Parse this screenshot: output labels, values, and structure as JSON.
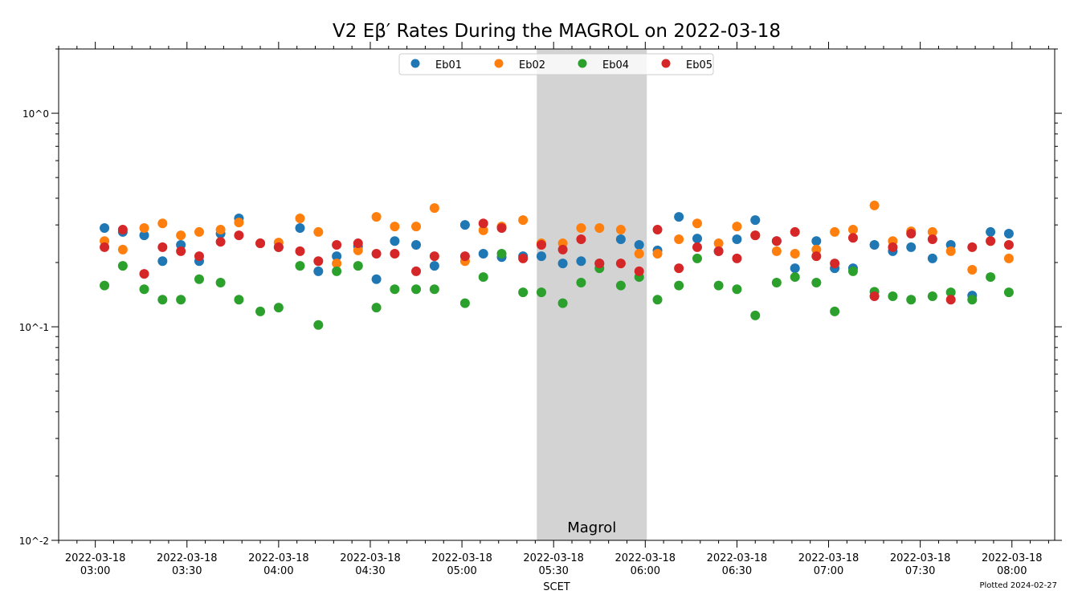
{
  "chart_data": {
    "type": "scatter",
    "title": "V2 Eβ′ Rates During the MAGROL on 2022-03-18",
    "xlabel": "SCET",
    "ylabel": "",
    "yscale": "log",
    "ylim": [
      0.01,
      2.0
    ],
    "xlim": [
      "02:48",
      "08:14"
    ],
    "date": "2022-03-18",
    "x_ticks": [
      "03:00",
      "03:30",
      "04:00",
      "04:30",
      "05:00",
      "05:30",
      "06:00",
      "06:30",
      "07:00",
      "07:30",
      "08:00"
    ],
    "y_ticks": [
      {
        "value": 1,
        "label": "10^0"
      },
      {
        "value": 0.1,
        "label": "10^-1"
      },
      {
        "value": 0.01,
        "label": "10^-2"
      }
    ],
    "grid": false,
    "legend_position": "top-center",
    "shaded_region": {
      "start": "05:24:30",
      "end": "06:00:30",
      "label": "Magrol",
      "color": "#d3d3d3"
    },
    "footnote": "Plotted 2024-02-27",
    "x": [
      "03:03",
      "03:09",
      "03:16",
      "03:22",
      "03:28",
      "03:34",
      "03:41",
      "03:47",
      "03:54",
      "04:00",
      "04:07",
      "04:13",
      "04:19",
      "04:26",
      "04:32",
      "04:38",
      "04:45",
      "04:51",
      "05:01",
      "05:07",
      "05:13",
      "05:20",
      "05:26",
      "05:33",
      "05:39",
      "05:45",
      "05:52",
      "05:58",
      "06:04",
      "06:11",
      "06:17",
      "06:24",
      "06:30",
      "06:36",
      "06:43",
      "06:49",
      "06:56",
      "07:02",
      "07:08",
      "07:15",
      "07:21",
      "07:27",
      "07:34",
      "07:40",
      "07:47",
      "07:53",
      "07:59"
    ],
    "series": [
      {
        "name": "Eb01",
        "color": "#1f77b4",
        "values": [
          0.29,
          0.278,
          0.268,
          0.203,
          0.242,
          0.203,
          0.273,
          0.322,
          0.246,
          0.236,
          0.29,
          0.182,
          0.214,
          0.238,
          0.167,
          0.252,
          0.242,
          0.193,
          0.3,
          0.22,
          0.212,
          0.214,
          0.214,
          0.198,
          0.203,
          0.198,
          0.257,
          0.242,
          0.228,
          0.327,
          0.259,
          0.226,
          0.257,
          0.316,
          0.252,
          0.188,
          0.252,
          0.188,
          0.188,
          0.242,
          0.226,
          0.236,
          0.209,
          0.242,
          0.14,
          0.278,
          0.273
        ]
      },
      {
        "name": "Eb02",
        "color": "#ff7f0e",
        "values": [
          0.252,
          0.23,
          0.29,
          0.305,
          0.268,
          0.278,
          0.285,
          0.308,
          0.246,
          0.248,
          0.322,
          0.278,
          0.198,
          0.228,
          0.327,
          0.295,
          0.295,
          0.36,
          0.203,
          0.283,
          0.295,
          0.316,
          0.246,
          0.246,
          0.29,
          0.29,
          0.285,
          0.22,
          0.22,
          0.257,
          0.305,
          0.246,
          0.295,
          0.268,
          0.226,
          0.22,
          0.23,
          0.278,
          0.285,
          0.37,
          0.252,
          0.28,
          0.278,
          0.226,
          0.185,
          0.252,
          0.209
        ]
      },
      {
        "name": "Eb04",
        "color": "#2ca02c",
        "values": [
          0.156,
          0.193,
          0.15,
          0.134,
          0.134,
          0.167,
          0.161,
          0.134,
          0.118,
          0.123,
          0.193,
          0.102,
          0.182,
          0.193,
          0.123,
          0.15,
          0.15,
          0.15,
          0.129,
          0.171,
          0.22,
          0.145,
          0.145,
          0.129,
          0.161,
          0.188,
          0.156,
          0.171,
          0.134,
          0.156,
          0.209,
          0.156,
          0.15,
          0.113,
          0.161,
          0.171,
          0.161,
          0.118,
          0.182,
          0.146,
          0.139,
          0.134,
          0.139,
          0.145,
          0.134,
          0.171,
          0.145
        ]
      },
      {
        "name": "Eb05",
        "color": "#d62728",
        "values": [
          0.236,
          0.285,
          0.177,
          0.236,
          0.226,
          0.214,
          0.25,
          0.268,
          0.246,
          0.236,
          0.226,
          0.203,
          0.242,
          0.246,
          0.22,
          0.22,
          0.182,
          0.214,
          0.214,
          0.305,
          0.29,
          0.209,
          0.242,
          0.23,
          0.257,
          0.198,
          0.198,
          0.182,
          0.285,
          0.188,
          0.236,
          0.226,
          0.209,
          0.268,
          0.252,
          0.278,
          0.214,
          0.198,
          0.261,
          0.139,
          0.236,
          0.273,
          0.257,
          0.134,
          0.236,
          0.252,
          0.242
        ]
      }
    ]
  }
}
